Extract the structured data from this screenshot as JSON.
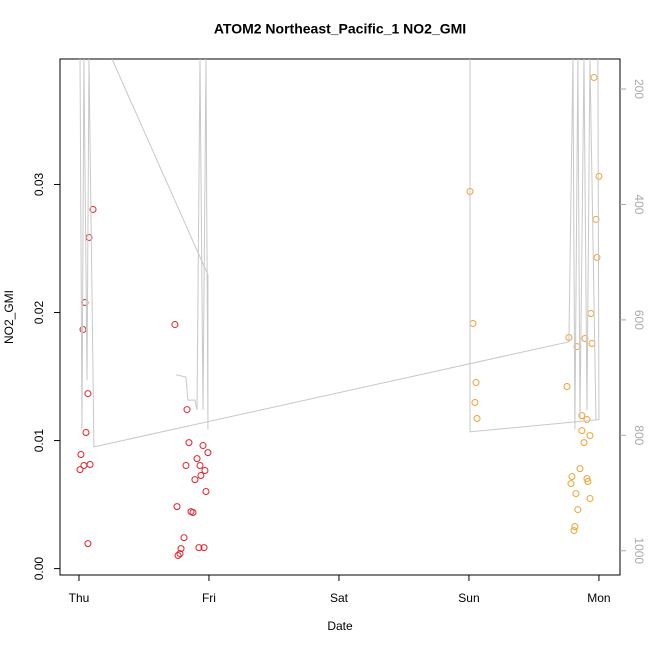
{
  "chart_data": {
    "type": "scatter",
    "title": "ATOM2 Northeast_Pacific_1 NO2_GMI",
    "x_label": "Date",
    "y_label": "NO2_GMI",
    "xlim": [
      -0.146,
      4.162
    ],
    "xticks": [
      {
        "value": 0,
        "label": "Thu"
      },
      {
        "value": 1,
        "label": "Fri"
      },
      {
        "value": 2,
        "label": "Sat"
      },
      {
        "value": 3,
        "label": "Sun"
      },
      {
        "value": 4,
        "label": "Mon"
      }
    ],
    "ylim": [
      -0.0005,
      0.0398
    ],
    "yticks": [
      {
        "value": 0,
        "label": "0.00"
      },
      0.01,
      0.02,
      0.03
    ],
    "y2lim": [
      1042,
      148
    ],
    "y2ticks": [
      200,
      400,
      600,
      800,
      1000
    ],
    "series": [
      {
        "type": "scatter",
        "color": "#e8202a",
        "x": [
          0.008,
          0.015,
          0.031,
          0.038,
          0.046,
          0.054,
          0.069,
          0.069,
          0.077,
          0.085,
          0.108,
          0.738,
          0.754,
          0.762,
          0.777,
          0.785,
          0.808,
          0.823,
          0.831,
          0.846,
          0.862,
          0.877,
          0.892,
          0.908,
          0.923,
          0.931,
          0.938,
          0.954,
          0.962,
          0.969,
          0.977,
          0.992
        ],
        "values": [
          0.00773,
          0.00891,
          0.01867,
          0.00805,
          0.02078,
          0.01063,
          0.00195,
          0.01367,
          0.02586,
          0.00813,
          0.02805,
          0.01906,
          0.00484,
          0.00102,
          0.00117,
          0.00156,
          0.00242,
          0.00805,
          0.01242,
          0.00984,
          0.00445,
          0.00438,
          0.00695,
          0.00859,
          0.00164,
          0.00805,
          0.00727,
          0.00961,
          0.00164,
          0.00766,
          0.00602,
          0.00906
        ]
      },
      {
        "type": "scatter",
        "color": "#f5a030",
        "x": [
          3.008,
          3.031,
          3.046,
          3.054,
          3.062,
          3.754,
          3.769,
          3.785,
          3.792,
          3.808,
          3.815,
          3.823,
          3.831,
          3.838,
          3.854,
          3.869,
          3.869,
          3.885,
          3.892,
          3.908,
          3.908,
          3.915,
          3.931,
          3.931,
          3.938,
          3.946,
          3.962,
          3.977,
          3.985,
          4.0
        ],
        "values": [
          0.02945,
          0.01914,
          0.01297,
          0.01453,
          0.01172,
          0.01422,
          0.01805,
          0.00664,
          0.00719,
          0.00297,
          0.00328,
          0.00586,
          0.01734,
          0.00461,
          0.00781,
          0.01195,
          0.01078,
          0.00984,
          0.01797,
          0.01164,
          0.00703,
          0.0068,
          0.01039,
          0.00547,
          0.01992,
          0.01758,
          0.03836,
          0.02727,
          0.0243,
          0.03063
        ]
      },
      {
        "type": "line",
        "axis": "y2",
        "color": "#c8c8c8",
        "x": [
          0.008,
          0.023,
          0.038,
          0.062,
          0.077,
          0.115,
          3.769,
          3.8,
          3.815,
          3.838,
          3.854,
          3.885,
          3.908,
          3.931,
          3.977,
          4.0,
          3.992,
          0.5,
          0.254,
          0.992,
          0.992,
          0.977,
          0.954,
          0.931,
          0.908,
          0.892,
          0.838,
          0.823,
          0.746,
          2.0,
          3.008,
          3.008,
          3.99
        ],
        "values": [
          148,
          790,
          148,
          704,
          148,
          820,
          638,
          148,
          790,
          148,
          773,
          148,
          756,
          148,
          773,
          773,
          148,
          null,
          148,
          522,
          790,
          148,
          756,
          148,
          756,
          739,
          739,
          699,
          695,
          null,
          148,
          794,
          773
        ]
      }
    ]
  }
}
